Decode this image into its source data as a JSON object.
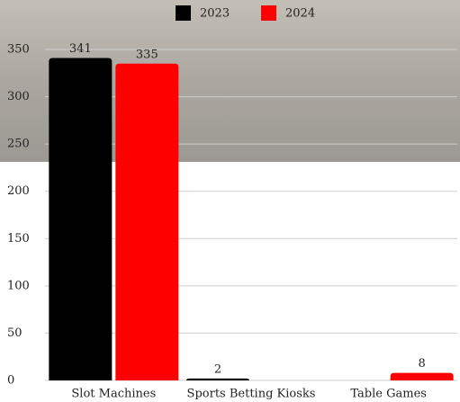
{
  "chart_data": {
    "type": "bar",
    "categories": [
      "Slot Machines",
      "Sports Betting Kiosks",
      "Table Games"
    ],
    "series": [
      {
        "name": "2023",
        "color": "#000000",
        "values": [
          341,
          2,
          null
        ]
      },
      {
        "name": "2024",
        "color": "#ff0000",
        "values": [
          335,
          null,
          8
        ]
      }
    ],
    "ylim": [
      0,
      350
    ],
    "yticks": [
      0,
      50,
      100,
      150,
      200,
      250,
      300,
      350
    ],
    "grid": true,
    "legend": "top"
  }
}
